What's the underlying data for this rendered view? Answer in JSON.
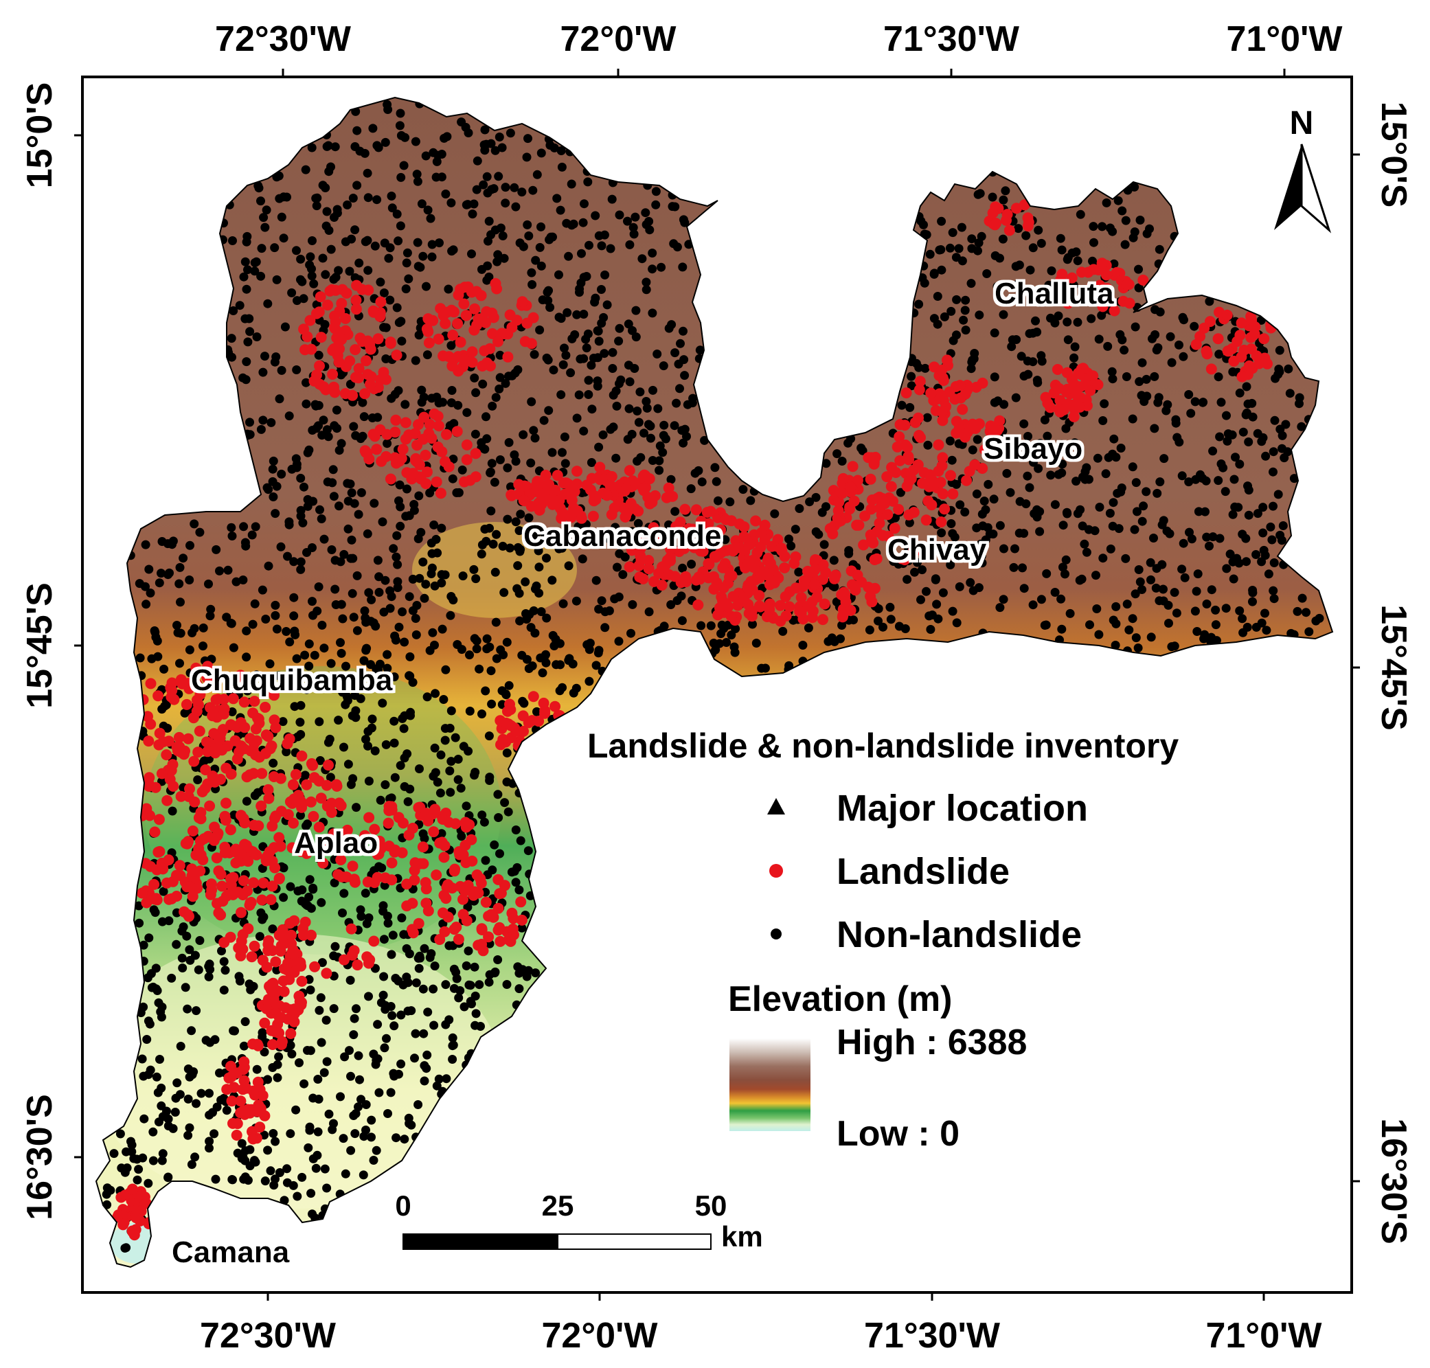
{
  "axes": {
    "top_ticks": [
      "72°30'W",
      "72°0'W",
      "71°30'W",
      "71°0'W"
    ],
    "bottom_ticks": [
      "72°30'W",
      "72°0'W",
      "71°30'W",
      "71°0'W"
    ],
    "left_ticks": [
      "15°0'S",
      "15°45'S",
      "16°30'S"
    ],
    "right_ticks": [
      "15°0'S",
      "15°45'S",
      "16°30'S"
    ]
  },
  "north_arrow": {
    "label": "N",
    "icon": "north-arrow-icon"
  },
  "places": [
    "Challuta",
    "Sibayo",
    "Chivay",
    "Cabanaconde",
    "Chuquibamba",
    "Aplao",
    "Camana"
  ],
  "legend": {
    "title": "Landslide & non-landslide inventory",
    "items": [
      {
        "label": "Major location",
        "symbol": "triangle-icon",
        "color": "#000000"
      },
      {
        "label": "Landslide",
        "symbol": "circle-icon",
        "color": "#e8141c"
      },
      {
        "label": "Non-landslide",
        "symbol": "circle-icon",
        "color": "#000000"
      }
    ],
    "elevation_title": "Elevation (m)",
    "elevation_high": "High : 6388",
    "elevation_low": "Low : 0",
    "ramp_colors": [
      "#ffffff",
      "#cfc6c0",
      "#9a7263",
      "#8a4e3c",
      "#a24a2c",
      "#d6872a",
      "#f2c432",
      "#2f9e44",
      "#79c46c",
      "#dff2d0",
      "#bfeee8"
    ]
  },
  "scale_bar": {
    "ticks": [
      "0",
      "25",
      "50"
    ],
    "unit": "km"
  },
  "colors": {
    "landslide": "#e8141c",
    "non_landslide": "#000000",
    "highland": "#8e5a46",
    "lowland": "#eef2b4"
  }
}
